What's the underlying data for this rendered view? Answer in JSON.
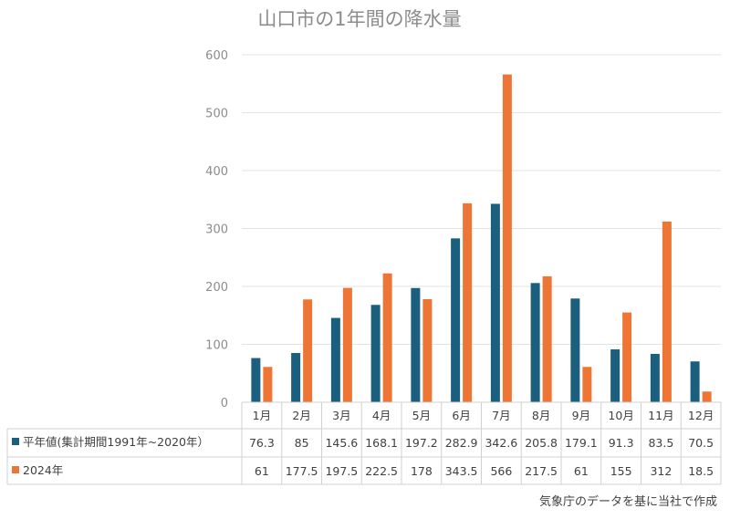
{
  "colors": {
    "series1": "#1b5f7e",
    "series2": "#ed7535"
  },
  "chart_data": {
    "type": "bar",
    "title": "山口市の1年間の降水量",
    "categories": [
      "1月",
      "2月",
      "3月",
      "4月",
      "5月",
      "6月",
      "7月",
      "8月",
      "9月",
      "10月",
      "11月",
      "12月"
    ],
    "series": [
      {
        "name": "平年値(集計期間1991年~2020年）",
        "values": [
          76.3,
          85,
          145.6,
          168.1,
          197.2,
          282.9,
          342.6,
          205.8,
          179.1,
          91.3,
          83.5,
          70.5
        ],
        "labels": [
          "76.3",
          "85",
          "145.6",
          "168.1",
          "197.2",
          "282.9",
          "342.6",
          "205.8",
          "179.1",
          "91.3",
          "83.5",
          "70.5"
        ]
      },
      {
        "name": "2024年",
        "values": [
          61,
          177.5,
          197.5,
          222.5,
          178,
          343.5,
          566,
          217.5,
          61,
          155,
          312,
          18.5
        ],
        "labels": [
          "61",
          "177.5",
          "197.5",
          "222.5",
          "178",
          "343.5",
          "566",
          "217.5",
          "61",
          "155",
          "312",
          "18.5"
        ]
      }
    ],
    "ylim": [
      0,
      600
    ],
    "yticks": [
      "0",
      "100",
      "200",
      "300",
      "400",
      "500",
      "600"
    ],
    "grid": true,
    "legend": "data-table"
  },
  "source": "気象庁のデータを基に当社で作成"
}
